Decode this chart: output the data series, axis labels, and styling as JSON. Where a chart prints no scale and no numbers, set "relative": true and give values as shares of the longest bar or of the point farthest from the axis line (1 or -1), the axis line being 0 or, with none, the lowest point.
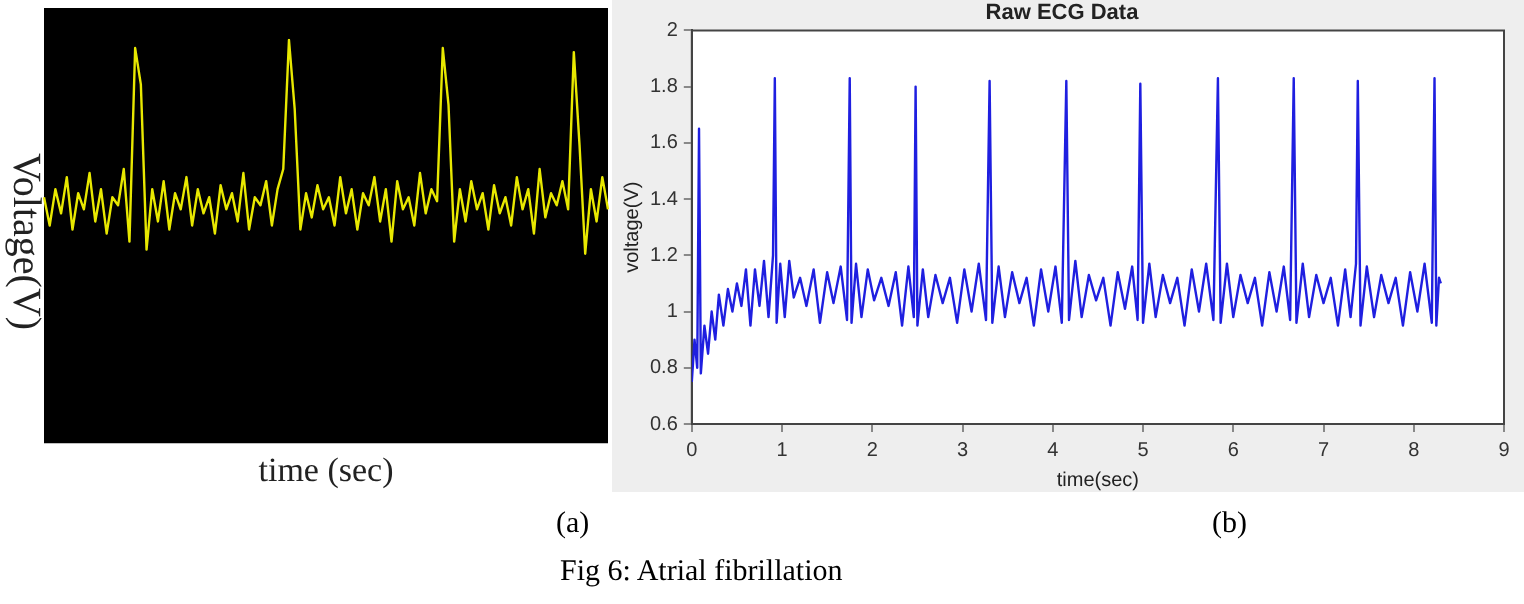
{
  "chart_data": [
    {
      "type": "line",
      "relative": true,
      "xlabel": "time (sec)",
      "ylabel": "Voltage(V)",
      "color": "#e8e800",
      "annotations": [
        "(a)"
      ],
      "categories": [
        null,
        null,
        null,
        null,
        null,
        null,
        null,
        null,
        null,
        null,
        null,
        null,
        null,
        null,
        null,
        null,
        null,
        null,
        null,
        null,
        null,
        null,
        null,
        null,
        null,
        null,
        null,
        null,
        null,
        null,
        null,
        null,
        null,
        null,
        null,
        null,
        null,
        null,
        null,
        null,
        null,
        null,
        null,
        null,
        null,
        null,
        null,
        null,
        null,
        null,
        null,
        null,
        null,
        null,
        null,
        null,
        null,
        null,
        null,
        null,
        null,
        null,
        null,
        null,
        null,
        null,
        null,
        null,
        null,
        null,
        null,
        null,
        null,
        null,
        null,
        null,
        null,
        null,
        null,
        null,
        null,
        null,
        null,
        null,
        null,
        null,
        null,
        null,
        null,
        null,
        null,
        null,
        null,
        null,
        null,
        null,
        null,
        null,
        null,
        null
      ],
      "values": [
        0.61,
        0.54,
        0.63,
        0.57,
        0.66,
        0.53,
        0.62,
        0.58,
        0.67,
        0.55,
        0.63,
        0.52,
        0.61,
        0.59,
        0.68,
        0.5,
        0.98,
        0.89,
        0.48,
        0.63,
        0.55,
        0.65,
        0.53,
        0.62,
        0.58,
        0.66,
        0.54,
        0.63,
        0.57,
        0.61,
        0.52,
        0.64,
        0.58,
        0.62,
        0.55,
        0.67,
        0.53,
        0.61,
        0.59,
        0.65,
        0.54,
        0.63,
        0.68,
        1,
        0.83,
        0.53,
        0.62,
        0.56,
        0.64,
        0.58,
        0.61,
        0.54,
        0.66,
        0.57,
        0.63,
        0.53,
        0.62,
        0.59,
        0.66,
        0.55,
        0.63,
        0.5,
        0.65,
        0.58,
        0.61,
        0.54,
        0.67,
        0.57,
        0.63,
        0.6,
        0.98,
        0.84,
        0.5,
        0.63,
        0.55,
        0.65,
        0.58,
        0.62,
        0.53,
        0.64,
        0.57,
        0.61,
        0.54,
        0.66,
        0.58,
        0.63,
        0.52,
        0.68,
        0.56,
        0.62,
        0.59,
        0.65,
        0.58,
        0.97,
        0.74,
        0.47,
        0.63,
        0.55,
        0.66,
        0.58
      ]
    },
    {
      "type": "line",
      "title": "Raw ECG Data",
      "xlabel": "time(sec)",
      "ylabel": "voltage(V)",
      "color": "#1f1fe0",
      "annotations": [
        "(b)",
        "Fig 6: Atrial fibrillation"
      ],
      "xlim": [
        0,
        9
      ],
      "xticks": [
        0,
        1,
        2,
        3,
        4,
        5,
        6,
        7,
        8,
        9
      ],
      "ylim": [
        0.6,
        2
      ],
      "yticks": [
        0.6,
        0.8,
        1,
        1.2,
        1.4,
        1.6,
        1.8,
        2
      ],
      "x": [
        0,
        0.03,
        0.06,
        0.08,
        0.1,
        0.14,
        0.18,
        0.22,
        0.26,
        0.3,
        0.35,
        0.4,
        0.45,
        0.5,
        0.55,
        0.6,
        0.65,
        0.7,
        0.75,
        0.8,
        0.85,
        0.9,
        0.92,
        0.94,
        0.98,
        1.03,
        1.08,
        1.13,
        1.2,
        1.27,
        1.35,
        1.42,
        1.5,
        1.57,
        1.65,
        1.72,
        1.75,
        1.77,
        1.82,
        1.88,
        1.95,
        2.02,
        2.1,
        2.18,
        2.26,
        2.33,
        2.4,
        2.46,
        2.48,
        2.5,
        2.56,
        2.62,
        2.7,
        2.78,
        2.86,
        2.94,
        3.02,
        3.1,
        3.18,
        3.26,
        3.3,
        3.33,
        3.4,
        3.47,
        3.55,
        3.63,
        3.71,
        3.79,
        3.87,
        3.95,
        4.03,
        4.1,
        4.15,
        4.18,
        4.25,
        4.32,
        4.4,
        4.48,
        4.56,
        4.64,
        4.72,
        4.8,
        4.88,
        4.94,
        4.97,
        5.0,
        5.07,
        5.14,
        5.22,
        5.3,
        5.38,
        5.46,
        5.54,
        5.62,
        5.7,
        5.78,
        5.83,
        5.86,
        5.93,
        6.0,
        6.08,
        6.16,
        6.24,
        6.32,
        6.4,
        6.48,
        6.56,
        6.63,
        6.67,
        6.7,
        6.77,
        6.84,
        6.92,
        7.0,
        7.08,
        7.16,
        7.24,
        7.3,
        7.36,
        7.38,
        7.41,
        7.48,
        7.56,
        7.64,
        7.72,
        7.8,
        7.88,
        7.96,
        8.04,
        8.12,
        8.2,
        8.23,
        8.25,
        8.28,
        8.3
      ],
      "values": [
        0.75,
        0.9,
        0.8,
        1.65,
        0.78,
        0.95,
        0.85,
        1.0,
        0.9,
        1.06,
        0.95,
        1.08,
        1.0,
        1.1,
        1.02,
        1.15,
        0.95,
        1.15,
        1.02,
        1.18,
        0.98,
        1.2,
        1.83,
        0.96,
        1.17,
        0.98,
        1.18,
        1.05,
        1.12,
        1.02,
        1.15,
        0.96,
        1.14,
        1.03,
        1.16,
        0.97,
        1.83,
        0.96,
        1.17,
        0.98,
        1.15,
        1.04,
        1.12,
        1.02,
        1.14,
        0.95,
        1.16,
        0.98,
        1.8,
        0.95,
        1.15,
        0.98,
        1.13,
        1.03,
        1.12,
        0.96,
        1.15,
        1.0,
        1.17,
        0.97,
        1.82,
        0.96,
        1.16,
        0.98,
        1.14,
        1.03,
        1.12,
        0.95,
        1.15,
        1.0,
        1.16,
        0.96,
        1.82,
        0.97,
        1.18,
        0.98,
        1.13,
        1.04,
        1.12,
        0.95,
        1.14,
        1.01,
        1.16,
        0.97,
        1.81,
        0.96,
        1.17,
        0.98,
        1.13,
        1.03,
        1.12,
        0.95,
        1.15,
        1.0,
        1.17,
        0.97,
        1.83,
        0.96,
        1.17,
        0.98,
        1.13,
        1.03,
        1.12,
        0.95,
        1.14,
        1.0,
        1.16,
        0.97,
        1.83,
        0.96,
        1.17,
        0.98,
        1.13,
        1.03,
        1.12,
        0.95,
        1.15,
        0.98,
        1.17,
        1.82,
        0.95,
        1.16,
        0.98,
        1.13,
        1.03,
        1.12,
        0.95,
        1.14,
        1.0,
        1.17,
        0.96,
        1.83,
        0.95,
        1.12,
        1.1
      ]
    }
  ]
}
